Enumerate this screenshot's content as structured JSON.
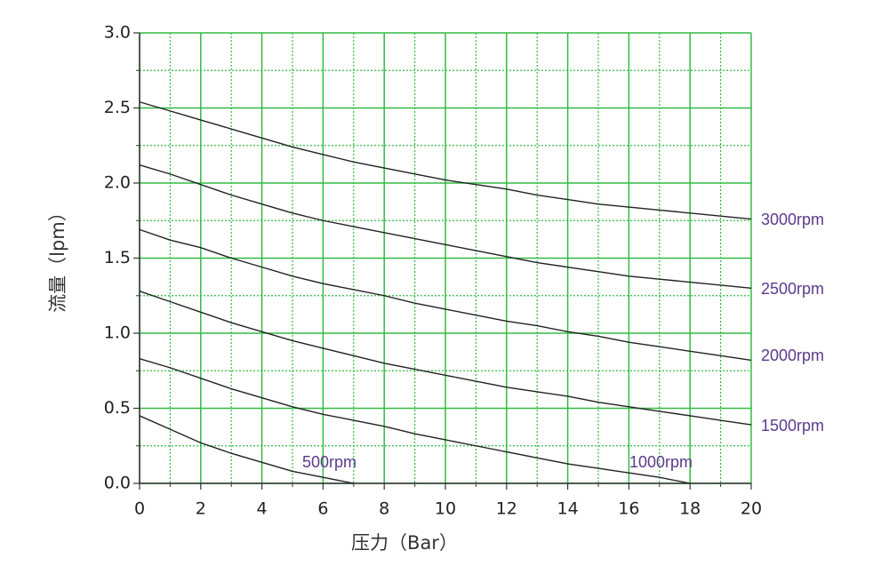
{
  "chart_data": {
    "type": "line",
    "xlabel": "压力（Bar）",
    "ylabel": "流量（lpm）",
    "x": [
      0,
      1,
      2,
      3,
      4,
      5,
      6,
      7,
      8,
      9,
      10,
      11,
      12,
      13,
      14,
      15,
      16,
      17,
      18,
      19,
      20
    ],
    "series": [
      {
        "name": "3000rpm",
        "color": "#222222",
        "values": [
          2.54,
          2.48,
          2.42,
          2.36,
          2.3,
          2.24,
          2.19,
          2.14,
          2.1,
          2.06,
          2.02,
          1.99,
          1.96,
          1.92,
          1.89,
          1.86,
          1.84,
          1.82,
          1.8,
          1.78,
          1.76
        ]
      },
      {
        "name": "2500rpm",
        "color": "#222222",
        "values": [
          2.12,
          2.06,
          1.99,
          1.92,
          1.86,
          1.8,
          1.75,
          1.71,
          1.67,
          1.63,
          1.59,
          1.55,
          1.51,
          1.47,
          1.44,
          1.41,
          1.38,
          1.36,
          1.34,
          1.32,
          1.3
        ]
      },
      {
        "name": "2000rpm",
        "color": "#222222",
        "values": [
          1.69,
          1.62,
          1.57,
          1.5,
          1.44,
          1.38,
          1.33,
          1.29,
          1.25,
          1.2,
          1.16,
          1.12,
          1.08,
          1.05,
          1.01,
          0.98,
          0.94,
          0.91,
          0.88,
          0.85,
          0.82
        ]
      },
      {
        "name": "1500rpm",
        "color": "#222222",
        "values": [
          1.28,
          1.21,
          1.14,
          1.07,
          1.01,
          0.95,
          0.9,
          0.85,
          0.8,
          0.76,
          0.72,
          0.68,
          0.64,
          0.61,
          0.58,
          0.54,
          0.51,
          0.48,
          0.45,
          0.42,
          0.39
        ]
      },
      {
        "name": "1000rpm",
        "color": "#222222",
        "values": [
          0.83,
          0.77,
          0.7,
          0.63,
          0.57,
          0.51,
          0.46,
          0.42,
          0.38,
          0.33,
          0.29,
          0.25,
          0.21,
          0.17,
          0.13,
          0.1,
          0.07,
          0.04,
          0.0,
          null,
          null
        ]
      },
      {
        "name": "500rpm",
        "color": "#222222",
        "values": [
          0.45,
          0.36,
          0.27,
          0.2,
          0.14,
          0.08,
          0.04,
          0.0,
          null,
          null,
          null,
          null,
          null,
          null,
          null,
          null,
          null,
          null,
          null,
          null,
          null
        ]
      }
    ],
    "xlim": [
      0,
      20
    ],
    "xticks": [
      0,
      2,
      4,
      6,
      8,
      10,
      12,
      14,
      16,
      18,
      20
    ],
    "xminorticks": [
      1,
      3,
      5,
      7,
      9,
      11,
      13,
      15,
      17,
      19
    ],
    "ylim": [
      0,
      3.0
    ],
    "yticks": [
      {
        "value": 0,
        "label": "0.0"
      },
      {
        "value": 0.5,
        "label": "0.5"
      },
      {
        "value": 1.0,
        "label": "1.0"
      },
      {
        "value": 1.5,
        "label": "1.5"
      },
      {
        "value": 2.0,
        "label": "2.0"
      },
      {
        "value": 2.5,
        "label": "2.5"
      },
      {
        "value": 3.0,
        "label": "3.0"
      }
    ],
    "yminorticks": [
      0.25,
      0.75,
      1.25,
      1.75,
      2.25,
      2.75
    ],
    "grid": true,
    "grid_color": "#33bb44"
  }
}
